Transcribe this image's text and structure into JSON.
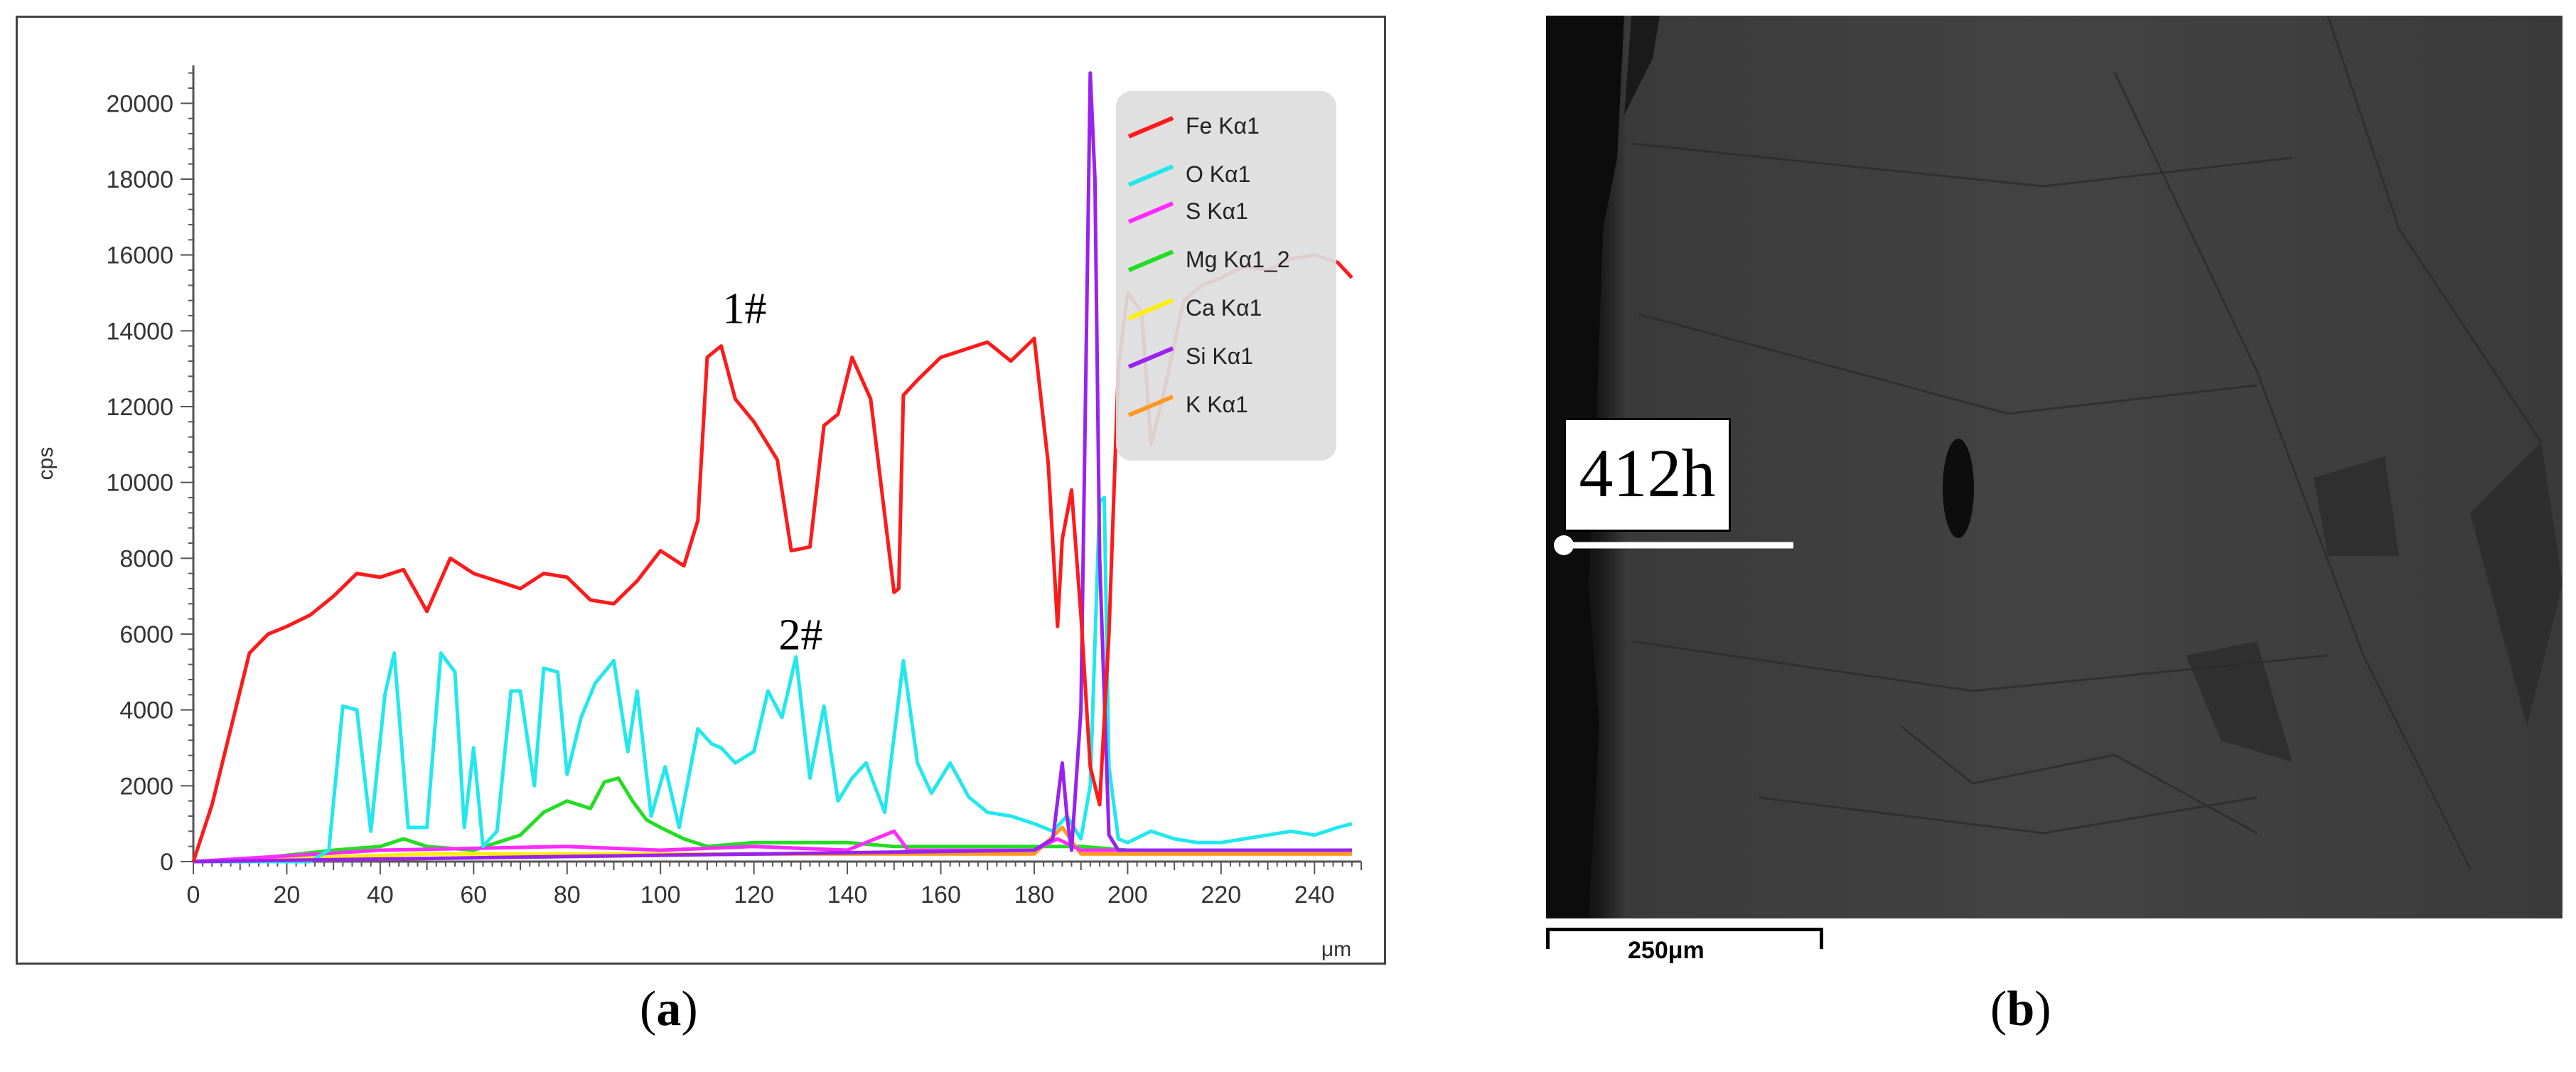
{
  "chart_data": {
    "type": "line",
    "title": "",
    "xlabel": "μm",
    "ylabel": "cps",
    "xlim": [
      0,
      250
    ],
    "ylim": [
      0,
      21000
    ],
    "x_ticks": [
      0,
      20,
      40,
      60,
      80,
      100,
      120,
      140,
      160,
      180,
      200,
      220,
      240
    ],
    "y_ticks": [
      0,
      2000,
      4000,
      6000,
      8000,
      10000,
      12000,
      14000,
      16000,
      18000,
      20000
    ],
    "legend": {
      "position": "top-right"
    },
    "series": [
      {
        "name": "Fe Kα1",
        "color": "#ff1a1a",
        "x": [
          0,
          4,
          8,
          12,
          16,
          20,
          25,
          30,
          35,
          40,
          45,
          50,
          55,
          60,
          65,
          70,
          75,
          80,
          85,
          90,
          95,
          100,
          105,
          108,
          110,
          113,
          116,
          120,
          125,
          128,
          132,
          135,
          138,
          141,
          145,
          150,
          151,
          152,
          155,
          160,
          165,
          170,
          175,
          180,
          183,
          185,
          186,
          188,
          190,
          192,
          194,
          196,
          198,
          200,
          203,
          205,
          208,
          212,
          216,
          220,
          225,
          230,
          235,
          240,
          245,
          248
        ],
        "y": [
          0,
          1500,
          3500,
          5500,
          6000,
          6200,
          6500,
          7000,
          7600,
          7500,
          7700,
          6600,
          8000,
          7600,
          7400,
          7200,
          7600,
          7500,
          6900,
          6800,
          7400,
          8200,
          7800,
          9000,
          13300,
          13600,
          12200,
          11600,
          10600,
          8200,
          8300,
          11500,
          11800,
          13300,
          12200,
          7100,
          7200,
          12300,
          12700,
          13300,
          13500,
          13700,
          13200,
          13800,
          10500,
          6200,
          8500,
          9800,
          6500,
          2500,
          1500,
          6000,
          13000,
          15000,
          14500,
          11000,
          12500,
          14800,
          15200,
          15400,
          15700,
          15600,
          15900,
          16000,
          15800,
          15400
        ]
      },
      {
        "name": "O Kα1",
        "color": "#22e8ee",
        "x": [
          0,
          25,
          29,
          32,
          35,
          38,
          41,
          43,
          46,
          50,
          53,
          56,
          58,
          60,
          62,
          65,
          68,
          70,
          73,
          75,
          78,
          80,
          83,
          86,
          90,
          93,
          95,
          98,
          101,
          104,
          108,
          111,
          113,
          116,
          120,
          123,
          126,
          129,
          132,
          135,
          138,
          141,
          144,
          148,
          152,
          155,
          158,
          162,
          166,
          170,
          175,
          180,
          184,
          187,
          190,
          192,
          194,
          195,
          196,
          198,
          200,
          205,
          210,
          215,
          220,
          225,
          230,
          235,
          240,
          245,
          248
        ],
        "y": [
          0,
          0,
          300,
          4100,
          4000,
          800,
          4400,
          5500,
          900,
          900,
          5500,
          5000,
          900,
          3000,
          400,
          800,
          4500,
          4500,
          2000,
          5100,
          5000,
          2300,
          3800,
          4700,
          5300,
          2900,
          4500,
          1200,
          2500,
          900,
          3500,
          3100,
          3000,
          2600,
          2900,
          4500,
          3800,
          5400,
          2200,
          4100,
          1600,
          2200,
          2600,
          1300,
          5300,
          2600,
          1800,
          2600,
          1700,
          1300,
          1200,
          1000,
          800,
          1200,
          600,
          2000,
          9500,
          9600,
          2500,
          600,
          500,
          800,
          600,
          500,
          500,
          600,
          700,
          800,
          700,
          900,
          1000
        ]
      },
      {
        "name": "S Kα1",
        "color": "#ff2bff",
        "x": [
          0,
          40,
          80,
          100,
          120,
          140,
          150,
          153,
          160,
          180,
          185,
          190,
          200,
          220,
          248
        ],
        "y": [
          0,
          300,
          400,
          300,
          400,
          300,
          800,
          300,
          300,
          300,
          600,
          300,
          300,
          300,
          300
        ]
      },
      {
        "name": "Mg Kα1_2",
        "color": "#22dd22",
        "x": [
          0,
          15,
          30,
          40,
          45,
          50,
          60,
          70,
          75,
          80,
          85,
          88,
          91,
          94,
          97,
          100,
          105,
          110,
          120,
          130,
          140,
          150,
          160,
          170,
          180,
          190,
          200,
          210,
          220,
          230,
          240,
          248
        ],
        "y": [
          0,
          100,
          300,
          400,
          600,
          400,
          300,
          700,
          1300,
          1600,
          1400,
          2100,
          2200,
          1600,
          1100,
          900,
          600,
          400,
          500,
          500,
          500,
          400,
          400,
          400,
          400,
          400,
          300,
          300,
          300,
          300,
          300,
          300
        ]
      },
      {
        "name": "Ca Kα1",
        "color": "#ffee00",
        "x": [
          0,
          50,
          100,
          150,
          180,
          186,
          190,
          200,
          248
        ],
        "y": [
          0,
          200,
          200,
          200,
          200,
          900,
          200,
          200,
          200
        ]
      },
      {
        "name": "Si Kα1",
        "color": "#9922ee",
        "x": [
          0,
          180,
          184,
          186,
          187,
          188,
          190,
          192,
          193,
          194,
          196,
          198,
          200,
          220,
          248
        ],
        "y": [
          0,
          300,
          600,
          2600,
          1200,
          300,
          4000,
          20800,
          18000,
          8000,
          700,
          300,
          300,
          300,
          300
        ]
      },
      {
        "name": "K Kα1",
        "color": "#ff9922",
        "x": [
          0,
          60,
          120,
          180,
          186,
          190,
          200,
          248
        ],
        "y": [
          0,
          100,
          200,
          200,
          900,
          200,
          200,
          200
        ]
      }
    ],
    "annotations": [
      {
        "text": "1#",
        "x": 118,
        "y": 14200
      },
      {
        "text": "2#",
        "x": 130,
        "y": 5600
      }
    ]
  },
  "captions": {
    "a": "(a)",
    "b": "(b)"
  },
  "sem": {
    "time_label": "412h",
    "scale_text": "250μm"
  }
}
